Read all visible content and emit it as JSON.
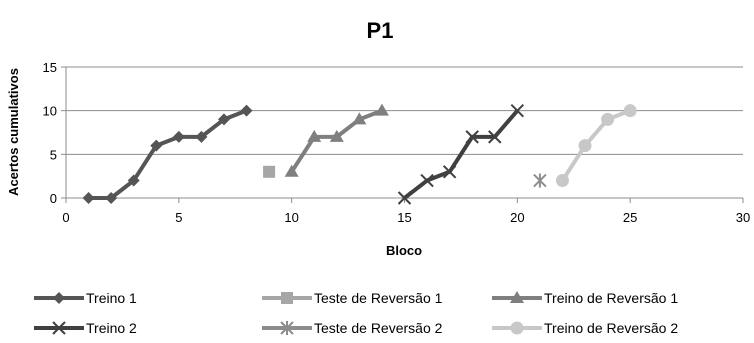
{
  "chart_data": {
    "type": "line",
    "title": "P1",
    "xlabel": "Bloco",
    "ylabel": "Acertos cumulativos",
    "xlim": [
      0,
      30
    ],
    "ylim": [
      0,
      15
    ],
    "xticks": [
      0,
      5,
      10,
      15,
      20,
      25,
      30
    ],
    "yticks": [
      0,
      5,
      10,
      15
    ],
    "grid": "horizontal",
    "legend_position": "bottom",
    "series": [
      {
        "name": "Treino 1",
        "color": "#555555",
        "marker": "diamond",
        "x": [
          1,
          2,
          3,
          4,
          5,
          6,
          7,
          8
        ],
        "y": [
          0,
          0,
          2,
          6,
          7,
          7,
          9,
          10
        ]
      },
      {
        "name": "Teste de Reversão 1",
        "color": "#a6a6a6",
        "marker": "square",
        "x": [
          9
        ],
        "y": [
          3
        ]
      },
      {
        "name": "Treino de Reversão 1",
        "color": "#7f7f7f",
        "marker": "triangle",
        "x": [
          10,
          11,
          12,
          13,
          14
        ],
        "y": [
          3,
          7,
          7,
          9,
          10
        ]
      },
      {
        "name": "Treino 2",
        "color": "#404040",
        "marker": "x",
        "x": [
          15,
          16,
          17,
          18,
          19,
          20
        ],
        "y": [
          0,
          2,
          3,
          7,
          7,
          10
        ]
      },
      {
        "name": "Teste de Reversão 2",
        "color": "#8c8c8c",
        "marker": "star",
        "x": [
          21
        ],
        "y": [
          2
        ]
      },
      {
        "name": "Treino de Reversão 2",
        "color": "#c8c8c8",
        "marker": "circle",
        "x": [
          22,
          23,
          24,
          25
        ],
        "y": [
          2,
          6,
          9,
          10
        ]
      }
    ]
  }
}
